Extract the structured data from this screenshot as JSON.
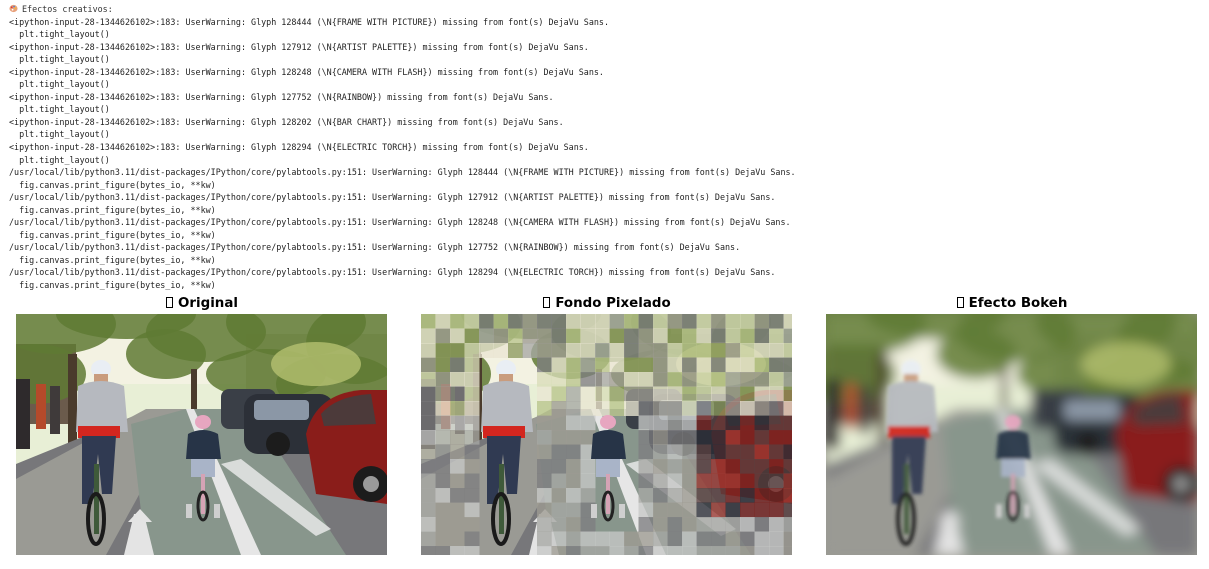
{
  "output": {
    "header_icon": "artist-palette-icon",
    "header_text": "Efectos creativos:",
    "lines": [
      "<ipython-input-28-1344626102>:183: UserWarning: Glyph 128444 (\\N{FRAME WITH PICTURE}) missing from font(s) DejaVu Sans.",
      "  plt.tight_layout()",
      "<ipython-input-28-1344626102>:183: UserWarning: Glyph 127912 (\\N{ARTIST PALETTE}) missing from font(s) DejaVu Sans.",
      "  plt.tight_layout()",
      "<ipython-input-28-1344626102>:183: UserWarning: Glyph 128248 (\\N{CAMERA WITH FLASH}) missing from font(s) DejaVu Sans.",
      "  plt.tight_layout()",
      "<ipython-input-28-1344626102>:183: UserWarning: Glyph 127752 (\\N{RAINBOW}) missing from font(s) DejaVu Sans.",
      "  plt.tight_layout()",
      "<ipython-input-28-1344626102>:183: UserWarning: Glyph 128202 (\\N{BAR CHART}) missing from font(s) DejaVu Sans.",
      "  plt.tight_layout()",
      "<ipython-input-28-1344626102>:183: UserWarning: Glyph 128294 (\\N{ELECTRIC TORCH}) missing from font(s) DejaVu Sans.",
      "  plt.tight_layout()",
      "/usr/local/lib/python3.11/dist-packages/IPython/core/pylabtools.py:151: UserWarning: Glyph 128444 (\\N{FRAME WITH PICTURE}) missing from font(s) DejaVu Sans.",
      "  fig.canvas.print_figure(bytes_io, **kw)",
      "/usr/local/lib/python3.11/dist-packages/IPython/core/pylabtools.py:151: UserWarning: Glyph 127912 (\\N{ARTIST PALETTE}) missing from font(s) DejaVu Sans.",
      "  fig.canvas.print_figure(bytes_io, **kw)",
      "/usr/local/lib/python3.11/dist-packages/IPython/core/pylabtools.py:151: UserWarning: Glyph 128248 (\\N{CAMERA WITH FLASH}) missing from font(s) DejaVu Sans.",
      "  fig.canvas.print_figure(bytes_io, **kw)",
      "/usr/local/lib/python3.11/dist-packages/IPython/core/pylabtools.py:151: UserWarning: Glyph 127752 (\\N{RAINBOW}) missing from font(s) DejaVu Sans.",
      "  fig.canvas.print_figure(bytes_io, **kw)",
      "/usr/local/lib/python3.11/dist-packages/IPython/core/pylabtools.py:151: UserWarning: Glyph 128294 (\\N{ELECTRIC TORCH}) missing from font(s) DejaVu Sans.",
      "  fig.canvas.print_figure(bytes_io, **kw)"
    ]
  },
  "figure": {
    "panels": [
      {
        "title": "Original",
        "title_glyph": "missing-glyph-box-icon",
        "effect": "none"
      },
      {
        "title": "Fondo Pixelado",
        "title_glyph": "missing-glyph-box-icon",
        "effect": "pixelated-background"
      },
      {
        "title": "Efecto Bokeh",
        "title_glyph": "missing-glyph-box-icon",
        "effect": "bokeh-blur"
      }
    ]
  },
  "colors": {
    "text": "#1f1f1f",
    "background": "#ffffff",
    "sky": "#e8efd6",
    "foliage": "#5f7a34",
    "road": "#77777a",
    "bike_lane": "#88968c",
    "red_car": "#8a1d1a",
    "shirt_gray": "#b6b9bf",
    "helmet": "#e9eef4",
    "child_helmet": "#e7a6c0"
  }
}
